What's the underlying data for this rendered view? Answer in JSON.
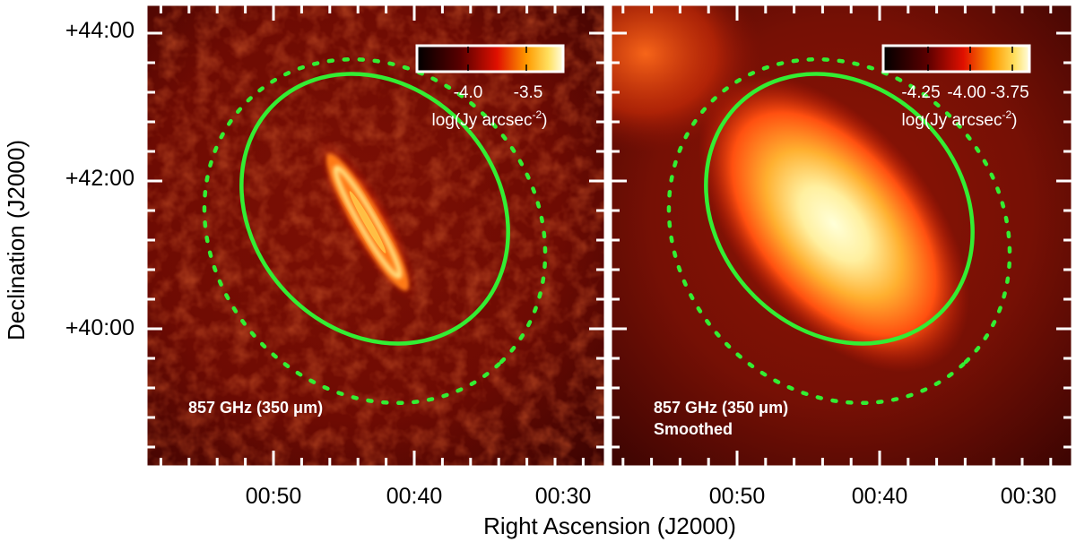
{
  "axes": {
    "ylabel": "Declination (J2000)",
    "xlabel": "Right Ascension (J2000)",
    "yticks": [
      "+44:00",
      "+42:00",
      "+40:00"
    ],
    "xticks": [
      "00:50",
      "00:40",
      "00:30"
    ]
  },
  "panels": [
    {
      "label_line1": "857 GHz (350 μm)",
      "label_line2": "",
      "colorbar": {
        "ticks": [
          "-4.0",
          "-3.5"
        ],
        "unit_main": "log(Jy arcsec",
        "unit_sup": "-2",
        "unit_end": ")"
      }
    },
    {
      "label_line1": "857 GHz (350 μm)",
      "label_line2": "Smoothed",
      "colorbar": {
        "ticks": [
          "-4.25",
          "-4.00",
          "-3.75"
        ],
        "unit_main": "log(Jy arcsec",
        "unit_sup": "-2",
        "unit_end": ")"
      }
    }
  ],
  "colors": {
    "ellipse": "#33ee33",
    "background": "#7a0e03",
    "frame": "#ffffff"
  }
}
